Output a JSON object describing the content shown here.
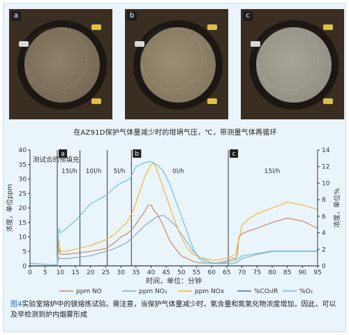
{
  "photos": {
    "panels": [
      {
        "tag": "a",
        "disc_color": "#8e8068",
        "rim_color": "#6e6250"
      },
      {
        "tag": "b",
        "disc_color": "#9a8e72",
        "rim_color": "#7c705a"
      },
      {
        "tag": "c",
        "disc_color": "#a7a496",
        "rim_color": "#8c8a80"
      }
    ],
    "caption": "在AZ91D保护气体量减少时的坩埚气压，℃，带测量气体再循环"
  },
  "chart_data": {
    "type": "line",
    "corner_note": "测试合的预填充",
    "xlabel": "时间，单位：分钟",
    "ylabel_left": "浓度，单位ppm",
    "ylabel_right": "浓度，单位%",
    "xlim": [
      0,
      95
    ],
    "ylim_left": [
      0,
      40
    ],
    "ylim_right": [
      0,
      14
    ],
    "x_ticks": [
      "0",
      "5",
      "10",
      "15",
      "20",
      "25",
      "30",
      "35",
      "40",
      "45",
      "50",
      "55",
      "60",
      "65",
      "70",
      "75",
      "80",
      "85",
      "90",
      "95"
    ],
    "y_ticks_left": [
      "0",
      "5",
      "10",
      "15",
      "20",
      "25",
      "30",
      "35",
      "40"
    ],
    "y_ticks_right": [
      "0",
      "2",
      "4",
      "6",
      "8",
      "10",
      "12",
      "14"
    ],
    "grid": false,
    "legend_position": "bottom",
    "markers": [
      {
        "x": 9,
        "label": "a"
      },
      {
        "x": 33.5,
        "label": "b"
      },
      {
        "x": 65.5,
        "label": "c"
      }
    ],
    "phase_dividers": [
      9,
      16.5,
      25.5,
      33.5,
      65.5
    ],
    "phase_labels": [
      {
        "x": 13,
        "label": "15l/h"
      },
      {
        "x": 21,
        "label": "10l/h"
      },
      {
        "x": 29.5,
        "label": "5l/h"
      },
      {
        "x": 49,
        "label": "0l/h"
      },
      {
        "x": 80,
        "label": "15l/h"
      }
    ],
    "series": [
      {
        "name": "ppm NO",
        "axis": "left",
        "color": "#c98a5c",
        "x": [
          0,
          8,
          9,
          9.5,
          10,
          12,
          16,
          20,
          25,
          28,
          30,
          32,
          34,
          36,
          38,
          39,
          40,
          41,
          42,
          44,
          46,
          48,
          50,
          52,
          54,
          56,
          58,
          60,
          62,
          64,
          66,
          67,
          68,
          68.5,
          69,
          70,
          72,
          75,
          80,
          85,
          90,
          95
        ],
        "y": [
          0,
          0,
          0,
          6,
          4,
          4,
          4.5,
          5,
          6,
          8,
          10,
          11,
          13,
          16,
          19,
          21,
          21,
          19,
          18,
          14,
          9,
          6,
          3.5,
          2.5,
          1.5,
          1,
          1,
          1,
          1,
          1.5,
          2,
          2.5,
          2.5,
          4,
          10,
          11,
          12,
          13,
          15,
          16.5,
          15.5,
          13
        ]
      },
      {
        "name": "ppm NO₂",
        "axis": "left",
        "color": "#8ea8c0",
        "x": [
          0,
          8,
          9,
          9.5,
          10,
          12,
          16,
          20,
          25,
          28,
          30,
          32,
          34,
          36,
          38,
          40,
          42,
          44,
          46,
          48,
          50,
          52,
          54,
          56,
          58,
          60,
          62,
          65,
          67,
          68,
          70,
          75,
          80,
          85,
          90,
          95
        ],
        "y": [
          0,
          0,
          0,
          3,
          2.5,
          2.5,
          3,
          3.5,
          5,
          6,
          7,
          8,
          10,
          12,
          14,
          15.5,
          17,
          17.5,
          16,
          14,
          11,
          8,
          5,
          3,
          2,
          1,
          0.8,
          0.8,
          0.8,
          1,
          2.5,
          4,
          5,
          5,
          5,
          5
        ]
      },
      {
        "name": "ppm NOx",
        "axis": "left",
        "color": "#f0b830",
        "x": [
          0,
          8,
          9,
          9.5,
          10,
          12,
          16,
          20,
          25,
          28,
          30,
          32,
          34,
          36,
          38,
          40,
          41,
          42,
          44,
          46,
          48,
          50,
          52,
          54,
          56,
          58,
          60,
          62,
          64,
          66,
          67,
          68,
          68.5,
          69,
          70,
          72,
          75,
          80,
          85,
          90,
          95
        ],
        "y": [
          0,
          0,
          0,
          9,
          5,
          5,
          6,
          7,
          9,
          11,
          13,
          15,
          19,
          25,
          31,
          35,
          35.5,
          33,
          27,
          21,
          15,
          10,
          6,
          4,
          3,
          2.5,
          2,
          2,
          2.5,
          3,
          3.5,
          4,
          7,
          9,
          14,
          16,
          18,
          20,
          22,
          21,
          19.5
        ]
      },
      {
        "name": "%CO₂IR",
        "axis": "right",
        "color": "#3a73b4",
        "x": [
          0,
          95
        ],
        "y": [
          0.02,
          0.02
        ]
      },
      {
        "name": "%O₂",
        "axis": "right",
        "color": "#6ec1dc",
        "x": [
          0,
          5,
          8,
          9,
          9.5,
          10,
          12,
          15,
          20,
          25,
          28,
          30,
          33,
          35,
          38,
          40,
          42,
          44,
          46,
          48,
          50,
          52,
          54,
          56,
          58,
          60,
          63,
          66,
          68,
          70,
          75,
          80,
          85,
          90,
          95
        ],
        "y": [
          0.3,
          0.2,
          0.15,
          0.1,
          4.5,
          4,
          4.5,
          5.5,
          7.5,
          8.5,
          9.5,
          10,
          10.5,
          12,
          12.5,
          12.6,
          12.2,
          11.5,
          10,
          8,
          6,
          4,
          2,
          0.8,
          0.4,
          0.3,
          0.3,
          0.5,
          0.7,
          1.2,
          1.5,
          1.8,
          1.8,
          1.8,
          1.8
        ]
      }
    ]
  },
  "figure_caption": {
    "label": "图4",
    "text": "实验室熔炉中的镁熔炼试验。需注意，当保护气体量减少时，氧含量和氮氧化物浓度增加，因此，可以及早检测到炉内烟雾形成"
  }
}
